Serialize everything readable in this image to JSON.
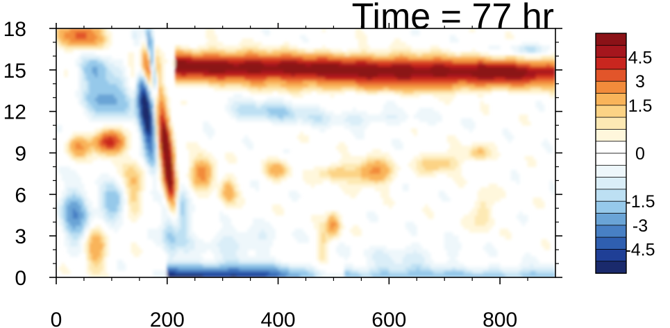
{
  "chart_data": {
    "type": "heatmap",
    "title": "Time = 77 hr",
    "xlabel": "",
    "ylabel": "",
    "xlim": [
      0,
      900
    ],
    "ylim": [
      0,
      18
    ],
    "x_ticks": [
      0,
      200,
      400,
      600,
      800
    ],
    "y_ticks": [
      0,
      3,
      6,
      9,
      12,
      15,
      18
    ],
    "colorbar": {
      "levels": [
        -5.25,
        -4.5,
        -3.75,
        -3,
        -2.25,
        -1.5,
        -1.125,
        -0.75,
        -0.375,
        0,
        0.375,
        0.75,
        1.125,
        1.5,
        2.25,
        3,
        3.75,
        4.5,
        5.25
      ],
      "colors": [
        "#1a2a6c",
        "#1f3f96",
        "#2f5fb0",
        "#4880c4",
        "#6aa4d6",
        "#96c9ea",
        "#bde0f3",
        "#daeef8",
        "#eef7fb",
        "#ffffff",
        "#ffffff",
        "#fff7dc",
        "#fde9b4",
        "#fcd385",
        "#f9b45a",
        "#f28b3b",
        "#e2552a",
        "#c9261f",
        "#a5161d",
        "#8b1217"
      ],
      "labels": [
        "4.5",
        "3",
        "1.5",
        "0",
        "-1.5",
        "-3",
        "-4.5"
      ],
      "label_values": [
        4.5,
        3,
        1.5,
        0,
        -1.5,
        -3,
        -4.5
      ]
    },
    "features": [
      {
        "desc": "upper-level positive band",
        "x": [
          210,
          900
        ],
        "y": [
          14,
          17
        ],
        "peak": 5.5
      },
      {
        "desc": "near-surface negative band",
        "x": [
          200,
          560
        ],
        "y": [
          0,
          1.2
        ],
        "peak": -5
      },
      {
        "desc": "tilted dipole front",
        "x": [
          150,
          250
        ],
        "y": [
          0,
          18
        ]
      },
      {
        "desc": "mid-level positive patch",
        "x": [
          60,
          130
        ],
        "y": [
          9,
          11
        ],
        "peak": 4.5
      }
    ]
  }
}
